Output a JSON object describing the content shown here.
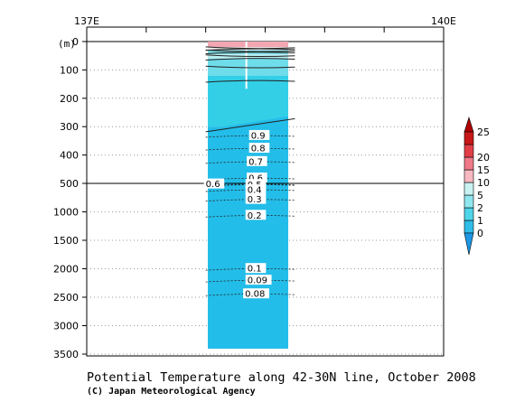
{
  "chart_data": {
    "type": "contour-section",
    "title": "Potential Temperature along 42-30N line, October 2008",
    "credit": "(C) Japan Meteorological Agency",
    "x_axis": {
      "label": "",
      "ticks": [
        {
          "value": 137,
          "label": "137E"
        },
        {
          "value": 140,
          "label": "140E"
        }
      ],
      "minor_ticks": [
        137.5,
        138,
        138.5,
        139,
        139.5
      ],
      "range": [
        137,
        140
      ]
    },
    "y_axis": {
      "unit_label": "(m)",
      "ticks": [
        "0",
        "100",
        "200",
        "300",
        "400",
        "500",
        "1000",
        "1500",
        "2000",
        "2500",
        "3000",
        "3500"
      ],
      "upper_range_m": [
        0,
        500
      ],
      "lower_range_m": [
        500,
        3700
      ],
      "reference_line_depth": 500
    },
    "data_lon_range": [
      138.0,
      138.75
    ],
    "bottom_depth_m": 3650,
    "contour_labels": [
      {
        "label": "0.9",
        "lon": 138.38,
        "depth": 331
      },
      {
        "label": "0.8",
        "lon": 138.38,
        "depth": 376
      },
      {
        "label": "0.7",
        "lon": 138.36,
        "depth": 423
      },
      {
        "label": "0.6",
        "lon": 138.36,
        "depth": 481
      },
      {
        "label": "0.6",
        "lon": 138.0,
        "depth": 510
      },
      {
        "label": "0.5",
        "lon": 138.35,
        "depth": 520
      },
      {
        "label": "0.4",
        "lon": 138.35,
        "depth": 610
      },
      {
        "label": "0.3",
        "lon": 138.35,
        "depth": 780
      },
      {
        "label": "0.2",
        "lon": 138.35,
        "depth": 1060
      },
      {
        "label": "0.1",
        "lon": 138.35,
        "depth": 1995
      },
      {
        "label": "0.09",
        "lon": 138.35,
        "depth": 2200
      },
      {
        "label": "0.08",
        "lon": 138.33,
        "depth": 2440
      }
    ],
    "colorbar": {
      "levels": [
        "0",
        "1",
        "2",
        "5",
        "10",
        "15",
        "20",
        "25"
      ],
      "colors": [
        "#2fbde8",
        "#4fd5ea",
        "#8fe6ee",
        "#c9f2f2",
        "#f7b8c2",
        "#f07a8a",
        "#e23e48",
        "#c81818"
      ],
      "below_color": "#1e96e6",
      "above_color": "#b00000"
    }
  }
}
